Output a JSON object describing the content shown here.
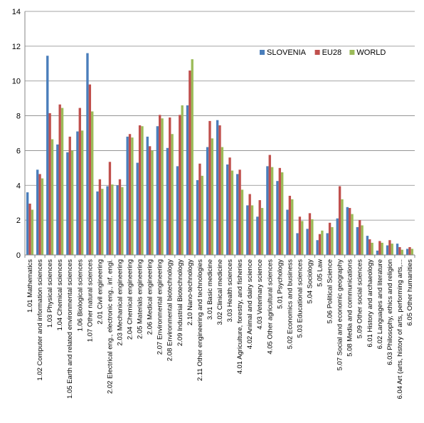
{
  "chart_data": {
    "type": "bar",
    "ylim": [
      0,
      14
    ],
    "yticks": [
      0,
      2,
      4,
      6,
      8,
      10,
      12,
      14
    ],
    "grid": true,
    "legend_position": "top-right",
    "categories": [
      "1.01 Mathematics",
      "1.02 Computer and information sciences",
      "1.03 Physical sciences",
      "1.04 Chemical sciences",
      "1.05 Earth and related environmental sciences",
      "1.06 Biological sciences",
      "1.07 Other natural sciences",
      "2.01 Civil engineering",
      "2.02 Electrical eng., electronic eng., inf. engi.",
      "2.03 Mechanical engineering",
      "2.04 Chemical engineering",
      "2.05 Materials engineering",
      "2.06 Medical engineering",
      "2.07 Environmental engineering",
      "2.08 Environmental biotechnology",
      "2.09 Industrial Biotechnology",
      "2.10 Nano-technology",
      "2.11 Other engineering and technologies",
      "3.01 Basic medicine",
      "3.02 Clinical medicine",
      "3.03 Health sciences",
      "4.01 Agriculture, forestry, and fisheries",
      "4.02 Animal and dairy science",
      "4.03 Veterinary science",
      "4.05 Other agricultural sciences",
      "5.01 Psychology",
      "5.02 Economics and business",
      "5.03 Educational sciences",
      "5.04 Sociology",
      "5.05 Law",
      "5.06 Political Science",
      "5.07 Social and economic geography",
      "5.08 Media and communications",
      "5.09 Other social sciences",
      "6.01 History and archaeology",
      "6.02 Languages and literature",
      "6.03 Philosophy, ethics and religion",
      "6.04 Art (arts, history of arts, performing arts,...",
      "6.05 Other humanities"
    ],
    "series": [
      {
        "name": "SLOVENIA",
        "color": "#4a7ebb",
        "values": [
          3.6,
          4.9,
          11.45,
          6.35,
          5.9,
          7.1,
          11.6,
          3.65,
          3.95,
          4.0,
          6.8,
          5.3,
          6.8,
          7.4,
          6.15,
          5.1,
          8.6,
          4.3,
          6.2,
          7.75,
          5.2,
          4.65,
          2.85,
          2.2,
          5.1,
          4.25,
          2.6,
          1.25,
          1.5,
          0.85,
          1.25,
          2.1,
          2.75,
          1.6,
          1.1,
          0.25,
          0.55,
          0.65,
          0.35
        ]
      },
      {
        "name": "EU28",
        "color": "#c0504d",
        "values": [
          2.95,
          4.65,
          8.15,
          8.65,
          6.8,
          8.45,
          9.8,
          4.35,
          5.35,
          4.35,
          6.95,
          7.45,
          6.25,
          8.05,
          7.9,
          8.05,
          10.6,
          5.25,
          7.7,
          7.45,
          5.6,
          4.9,
          3.5,
          3.15,
          5.75,
          5.0,
          3.4,
          2.2,
          2.4,
          1.2,
          1.85,
          3.95,
          2.7,
          2.0,
          0.9,
          0.8,
          0.85,
          0.45,
          0.45
        ]
      },
      {
        "name": "WORLD",
        "color": "#9bbb59",
        "values": [
          2.6,
          4.4,
          6.65,
          8.45,
          6.0,
          7.15,
          8.25,
          3.8,
          4.05,
          3.9,
          6.75,
          7.4,
          6.0,
          7.85,
          6.95,
          8.6,
          11.25,
          4.55,
          6.7,
          6.2,
          4.85,
          3.75,
          2.85,
          2.7,
          5.05,
          4.75,
          3.2,
          1.95,
          2.05,
          1.4,
          1.6,
          3.2,
          2.35,
          1.7,
          0.7,
          0.7,
          0.65,
          0.3,
          0.35
        ]
      }
    ]
  }
}
